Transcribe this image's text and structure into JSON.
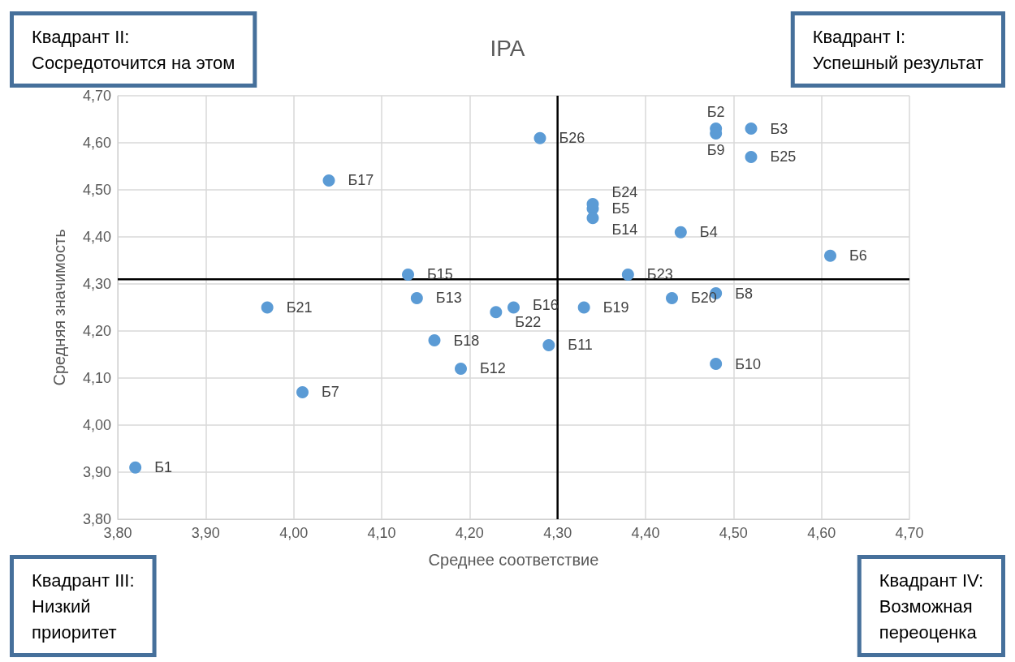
{
  "chart_data": {
    "type": "scatter",
    "title": "IPA",
    "xlabel": "Среднее соответствие",
    "ylabel": "Средняя значимость",
    "annotations": [
      "Квадрант II:\nСосредоточится на этом",
      "Квадрант I:\nУспешный результат",
      "Квадрант III:\nНизкий\nприоритет",
      "Квадрант IV:\nВозможная\nпереоценка"
    ],
    "series": [
      {
        "color": "#5b9bd5",
        "x": [
          3.82,
          4.48,
          4.52,
          4.44,
          4.34,
          4.61,
          4.01,
          4.48,
          4.48,
          4.48,
          4.29,
          4.19,
          4.14,
          4.34,
          4.13,
          4.25,
          4.04,
          4.16,
          4.33,
          4.43,
          3.97,
          4.23,
          4.38,
          4.34,
          4.52,
          4.28
        ],
        "values": [
          3.91,
          4.63,
          4.63,
          4.41,
          4.46,
          4.36,
          4.07,
          4.28,
          4.62,
          4.13,
          4.17,
          4.12,
          4.27,
          4.44,
          4.32,
          4.25,
          4.52,
          4.18,
          4.25,
          4.27,
          4.25,
          4.24,
          4.32,
          4.47,
          4.57,
          4.61
        ],
        "value_labels": [
          "Б1",
          "Б2",
          "Б3",
          "Б4",
          "Б5",
          "Б6",
          "Б7",
          "Б8",
          "Б9",
          "Б10",
          "Б11",
          "Б12",
          "Б13",
          "Б14",
          "Б15",
          "Б16",
          "Б17",
          "Б18",
          "Б19",
          "Б20",
          "Б21",
          "Б22",
          "Б23",
          "Б24",
          "Б25",
          "Б26"
        ]
      }
    ],
    "xlim": [
      3.8,
      4.7
    ],
    "xticks": [
      {
        "value": 3.8,
        "label": "3,80"
      },
      {
        "value": 3.9,
        "label": "3,90"
      },
      {
        "value": 4.0,
        "label": "4,00"
      },
      {
        "value": 4.1,
        "label": "4,10"
      },
      {
        "value": 4.2,
        "label": "4,20"
      },
      {
        "value": 4.3,
        "label": "4,30"
      },
      {
        "value": 4.4,
        "label": "4,40"
      },
      {
        "value": 4.5,
        "label": "4,50"
      },
      {
        "value": 4.6,
        "label": "4,60"
      },
      {
        "value": 4.7,
        "label": "4,70"
      }
    ],
    "ylim": [
      3.8,
      4.7
    ],
    "yticks": [
      {
        "value": 3.8,
        "label": "3,80"
      },
      {
        "value": 3.9,
        "label": "3,90"
      },
      {
        "value": 4.0,
        "label": "4,00"
      },
      {
        "value": 4.1,
        "label": "4,10"
      },
      {
        "value": 4.2,
        "label": "4,20"
      },
      {
        "value": 4.3,
        "label": "4,30"
      },
      {
        "value": 4.4,
        "label": "4,40"
      },
      {
        "value": 4.5,
        "label": "4,50"
      },
      {
        "value": 4.6,
        "label": "4,60"
      },
      {
        "value": 4.7,
        "label": "4,70"
      }
    ],
    "ref_lines": [
      {
        "axis": "x",
        "value": 4.3,
        "color": "#000000"
      },
      {
        "axis": "y",
        "value": 4.31,
        "color": "#000000"
      }
    ],
    "grid": true,
    "marker": "circle"
  }
}
